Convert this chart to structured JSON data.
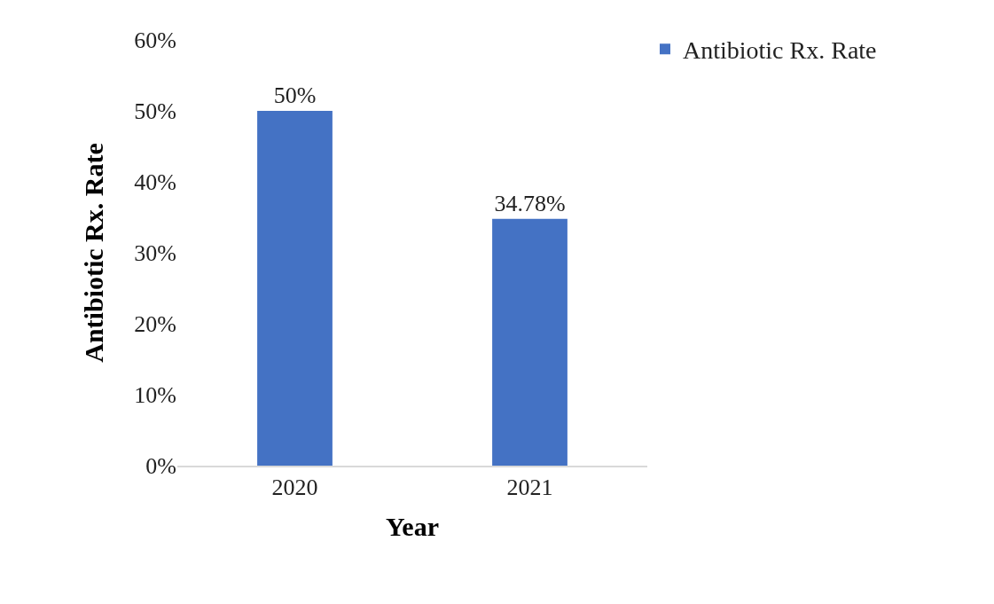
{
  "chart_data": {
    "type": "bar",
    "categories": [
      "2020",
      "2021"
    ],
    "series": [
      {
        "name": "Antibiotic Rx. Rate",
        "color": "#4472c4",
        "values": [
          50,
          34.78
        ],
        "value_labels": [
          "50%",
          "34.78%"
        ]
      }
    ],
    "xlabel": "Year",
    "ylabel": "Antibiotic Rx. Rate",
    "ylim": [
      0,
      60
    ],
    "yticks": [
      {
        "value": 0,
        "label": "0%"
      },
      {
        "value": 10,
        "label": "10%"
      },
      {
        "value": 20,
        "label": "20%"
      },
      {
        "value": 30,
        "label": "30%"
      },
      {
        "value": 40,
        "label": "40%"
      },
      {
        "value": 50,
        "label": "50%"
      },
      {
        "value": 60,
        "label": "60%"
      }
    ],
    "legend": "top right"
  }
}
